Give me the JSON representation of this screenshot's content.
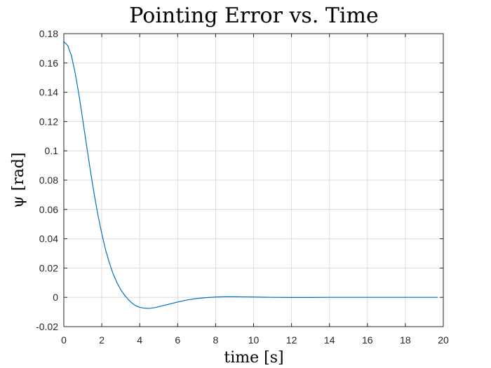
{
  "chart_data": {
    "type": "line",
    "title": "Pointing Error vs. Time",
    "xlabel": "time [s]",
    "ylabel": "ψ [rad]",
    "xlim": [
      0,
      20
    ],
    "ylim": [
      -0.02,
      0.18
    ],
    "xticks": [
      0,
      2,
      4,
      6,
      8,
      10,
      12,
      14,
      16,
      18,
      20
    ],
    "yticks": [
      -0.02,
      0,
      0.02,
      0.04,
      0.06,
      0.08,
      0.1,
      0.12,
      0.14,
      0.16,
      0.18
    ],
    "xtick_labels": [
      "0",
      "2",
      "4",
      "6",
      "8",
      "10",
      "12",
      "14",
      "16",
      "18",
      "20"
    ],
    "ytick_labels": [
      "-0.02",
      "0",
      "0.02",
      "0.04",
      "0.06",
      "0.08",
      "0.1",
      "0.12",
      "0.14",
      "0.16",
      "0.18"
    ],
    "grid": true,
    "series": [
      {
        "color": "#0072bd",
        "x": [
          0,
          0.2,
          0.4,
          0.6,
          0.8,
          1.0,
          1.2,
          1.4,
          1.6,
          1.8,
          2.0,
          2.2,
          2.4,
          2.6,
          2.8,
          3.0,
          3.2,
          3.4,
          3.6,
          3.8,
          4.0,
          4.2,
          4.4,
          4.6,
          4.8,
          5.0,
          5.5,
          6.0,
          6.5,
          7.0,
          7.5,
          8.0,
          8.5,
          9.0,
          9.5,
          10.0,
          11.0,
          12.0,
          13.0,
          14.0,
          15.0,
          16.0,
          17.0,
          18.0,
          19.0,
          19.7
        ],
        "y": [
          0.1745,
          0.172,
          0.165,
          0.153,
          0.138,
          0.121,
          0.1035,
          0.0865,
          0.0705,
          0.056,
          0.0435,
          0.0325,
          0.0235,
          0.016,
          0.01,
          0.0052,
          0.0015,
          -0.0015,
          -0.004,
          -0.0058,
          -0.0068,
          -0.0073,
          -0.0075,
          -0.0074,
          -0.007,
          -0.0064,
          -0.0048,
          -0.0032,
          -0.0018,
          -0.0008,
          -0.0002,
          0.0002,
          0.0004,
          0.0004,
          0.0003,
          0.0002,
          0.0,
          -0.0001,
          -0.0001,
          0.0,
          0.0,
          0.0,
          0.0,
          0.0,
          0.0,
          0.0
        ]
      }
    ]
  }
}
